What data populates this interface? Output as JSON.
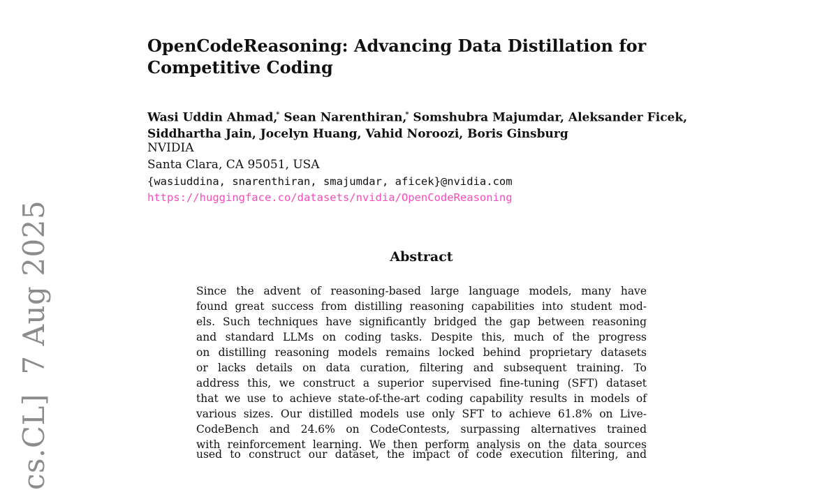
{
  "page": {
    "background_color": "#ffffff",
    "text_color": "#111111"
  },
  "arxiv_watermark": {
    "text": "cs.CL]  7 Aug 2025",
    "color": "#8c8c8c"
  },
  "title": {
    "line1": "OpenCodeReasoning: Advancing Data Distillation for",
    "line2": "Competitive Coding"
  },
  "authors": {
    "line1_parts": [
      "Wasi Uddin Ahmad,",
      "*",
      " Sean Narenthiran,",
      "*",
      " Somshubra Majumdar, Aleksander Ficek,"
    ],
    "line2": "Siddhartha Jain, Jocelyn Huang, Vahid Noroozi, Boris Ginsburg",
    "affiliation": "NVIDIA",
    "address": "Santa Clara, CA 95051, USA",
    "emails": "{wasiuddina, snarenthiran, smajumdar, aficek}@nvidia.com",
    "dataset_url": "https://huggingface.co/datasets/nvidia/OpenCodeReasoning",
    "url_color": "#f74cbb"
  },
  "abstract": {
    "heading": "Abstract",
    "lines": [
      "Since the advent of reasoning-based large language models, many have",
      "found great success from distilling reasoning capabilities into student mod-",
      "els. Such techniques have significantly bridged the gap between reasoning",
      "and standard LLMs on coding tasks. Despite this, much of the progress",
      "on distilling reasoning models remains locked behind proprietary datasets",
      "or lacks details on data curation, filtering and subsequent training. To",
      "address this, we construct a superior supervised fine-tuning (SFT) dataset",
      "that we use to achieve state-of-the-art coding capability results in models of",
      "various sizes. Our distilled models use only SFT to achieve 61.8% on Live-",
      "CodeBench and 24.6% on CodeContests, surpassing alternatives trained",
      "with reinforcement learning. We then perform analysis on the data sources"
    ],
    "partial_line": "used to construct our dataset, the impact of code execution filtering, and"
  }
}
